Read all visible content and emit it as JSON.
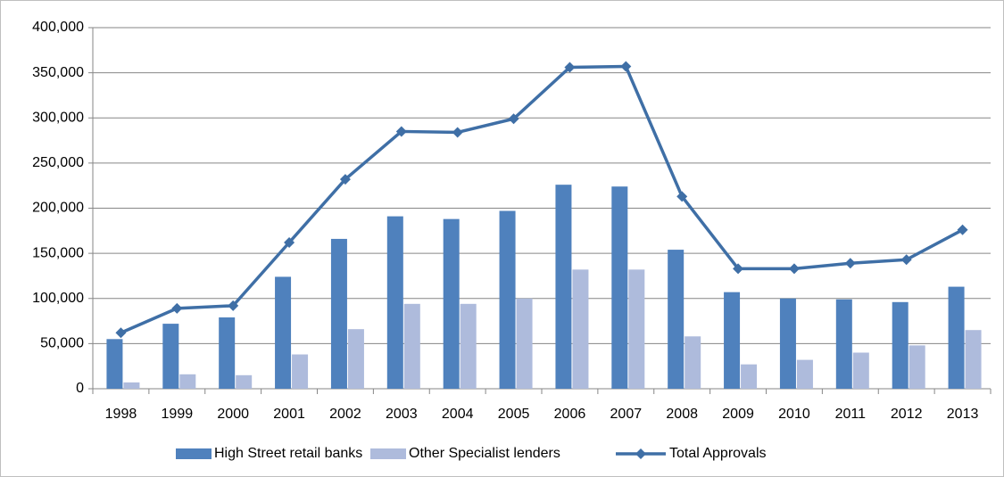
{
  "chart_data": {
    "type": "bar",
    "categories": [
      "1998",
      "1999",
      "2000",
      "2001",
      "2002",
      "2003",
      "2004",
      "2005",
      "2006",
      "2007",
      "2008",
      "2009",
      "2010",
      "2011",
      "2012",
      "2013"
    ],
    "series": [
      {
        "name": "High Street retail banks",
        "type": "bar",
        "color": "#4f81bd",
        "values": [
          55000,
          72000,
          79000,
          124000,
          166000,
          191000,
          188000,
          197000,
          226000,
          224000,
          154000,
          107000,
          100000,
          99000,
          96000,
          113000
        ]
      },
      {
        "name": "Other Specialist lenders",
        "type": "bar",
        "color": "#aebbdc",
        "values": [
          7000,
          16000,
          15000,
          38000,
          66000,
          94000,
          94000,
          100000,
          132000,
          132000,
          58000,
          27000,
          32000,
          40000,
          48000,
          65000
        ]
      },
      {
        "name": "Total Approvals",
        "type": "line",
        "color": "#3f6fa6",
        "values": [
          62000,
          89000,
          92000,
          162000,
          232000,
          285000,
          284000,
          299000,
          356000,
          357000,
          213000,
          133000,
          133000,
          139000,
          143000,
          176000
        ]
      }
    ],
    "ylim": [
      0,
      400000
    ],
    "yticks": [
      {
        "value": 0,
        "label": "0"
      },
      {
        "value": 50000,
        "label": "50,000"
      },
      {
        "value": 100000,
        "label": "100,000"
      },
      {
        "value": 150000,
        "label": "150,000"
      },
      {
        "value": 200000,
        "label": "200,000"
      },
      {
        "value": 250000,
        "label": "250,000"
      },
      {
        "value": 300000,
        "label": "300,000"
      },
      {
        "value": 350000,
        "label": "350,000"
      },
      {
        "value": 400000,
        "label": "400,000"
      }
    ],
    "grid": true,
    "legend": "bottom"
  }
}
